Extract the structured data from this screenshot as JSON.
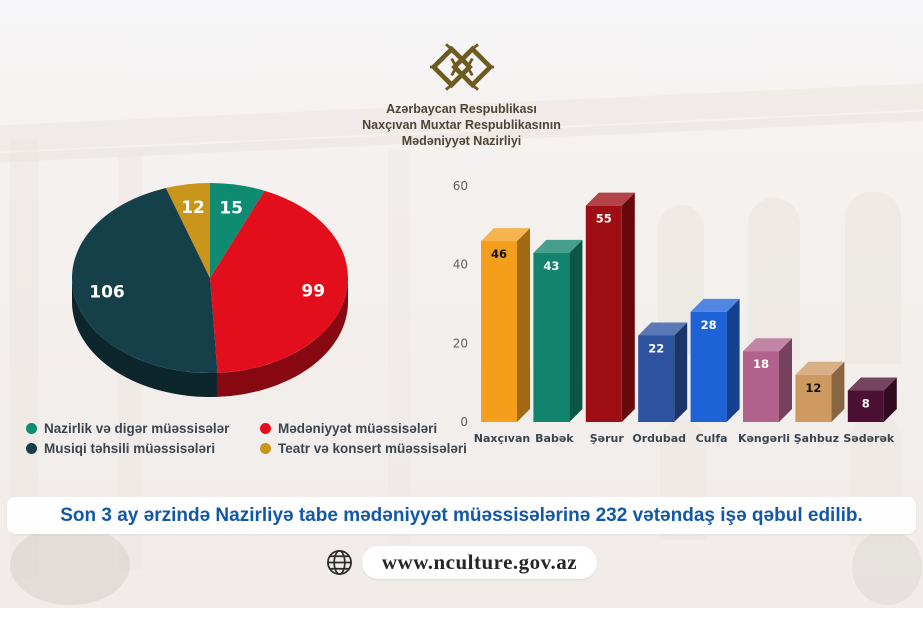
{
  "header": {
    "logo_icon": "nakhchivan-knot-icon",
    "org_lines": [
      "Azərbaycan Respublikası",
      "Naxçıvan Muxtar Respublikasının",
      "Mədəniyyət Nazirliyi"
    ],
    "logo_color": "#6e5b21",
    "text_color": "#4e4538"
  },
  "chart_data": [
    {
      "type": "pie",
      "style": "3d",
      "direction": "clockwise",
      "start_angle_deg": 0,
      "labels": [
        "Nazirlik və digər müəssisələr",
        "Mədəniyyət müəssisələri",
        "Musiqi təhsili müəssisələri",
        "Teatr və konsert müəssisələri"
      ],
      "values": [
        15,
        99,
        106,
        12
      ],
      "colors": [
        "#0e8b71",
        "#e30e1c",
        "#15404a",
        "#c9961b"
      ],
      "total": 232,
      "legend_position": "bottom",
      "legend": [
        {
          "label": "Nazirlik və digər müəssisələr",
          "color": "#0e8b71"
        },
        {
          "label": "Mədəniyyət müəssisələri",
          "color": "#e30e1c"
        },
        {
          "label": "Musiqi təhsili müəssisələri",
          "color": "#15404a"
        },
        {
          "label": "Teatr və konsert müəssisələri",
          "color": "#c9961b"
        }
      ]
    },
    {
      "type": "bar",
      "style": "3d",
      "categories": [
        "Naxçıvan",
        "Babək",
        "Şərur",
        "Ordubad",
        "Culfa",
        "Kəngərli",
        "Şahbuz",
        "Sədərək"
      ],
      "values": [
        46,
        43,
        55,
        22,
        28,
        18,
        12,
        8
      ],
      "colors": [
        "#f59e1b",
        "#12836c",
        "#9e0e14",
        "#2c52a0",
        "#1e62d8",
        "#b2638d",
        "#ce9a62",
        "#4c1032"
      ],
      "ylim": [
        0,
        60
      ],
      "yticks": [
        0,
        20,
        40,
        60
      ],
      "grid": false,
      "xlabel": "",
      "ylabel": ""
    }
  ],
  "statement": {
    "text": "Son 3 ay ərzində Nazirliyə tabe mədəniyyət müəssisələrinə 232 vətəndaş işə qəbul edilib.",
    "text_color": "#1358a8"
  },
  "footer": {
    "globe_icon": "globe-icon",
    "website": "www.nculture.gov.az"
  }
}
